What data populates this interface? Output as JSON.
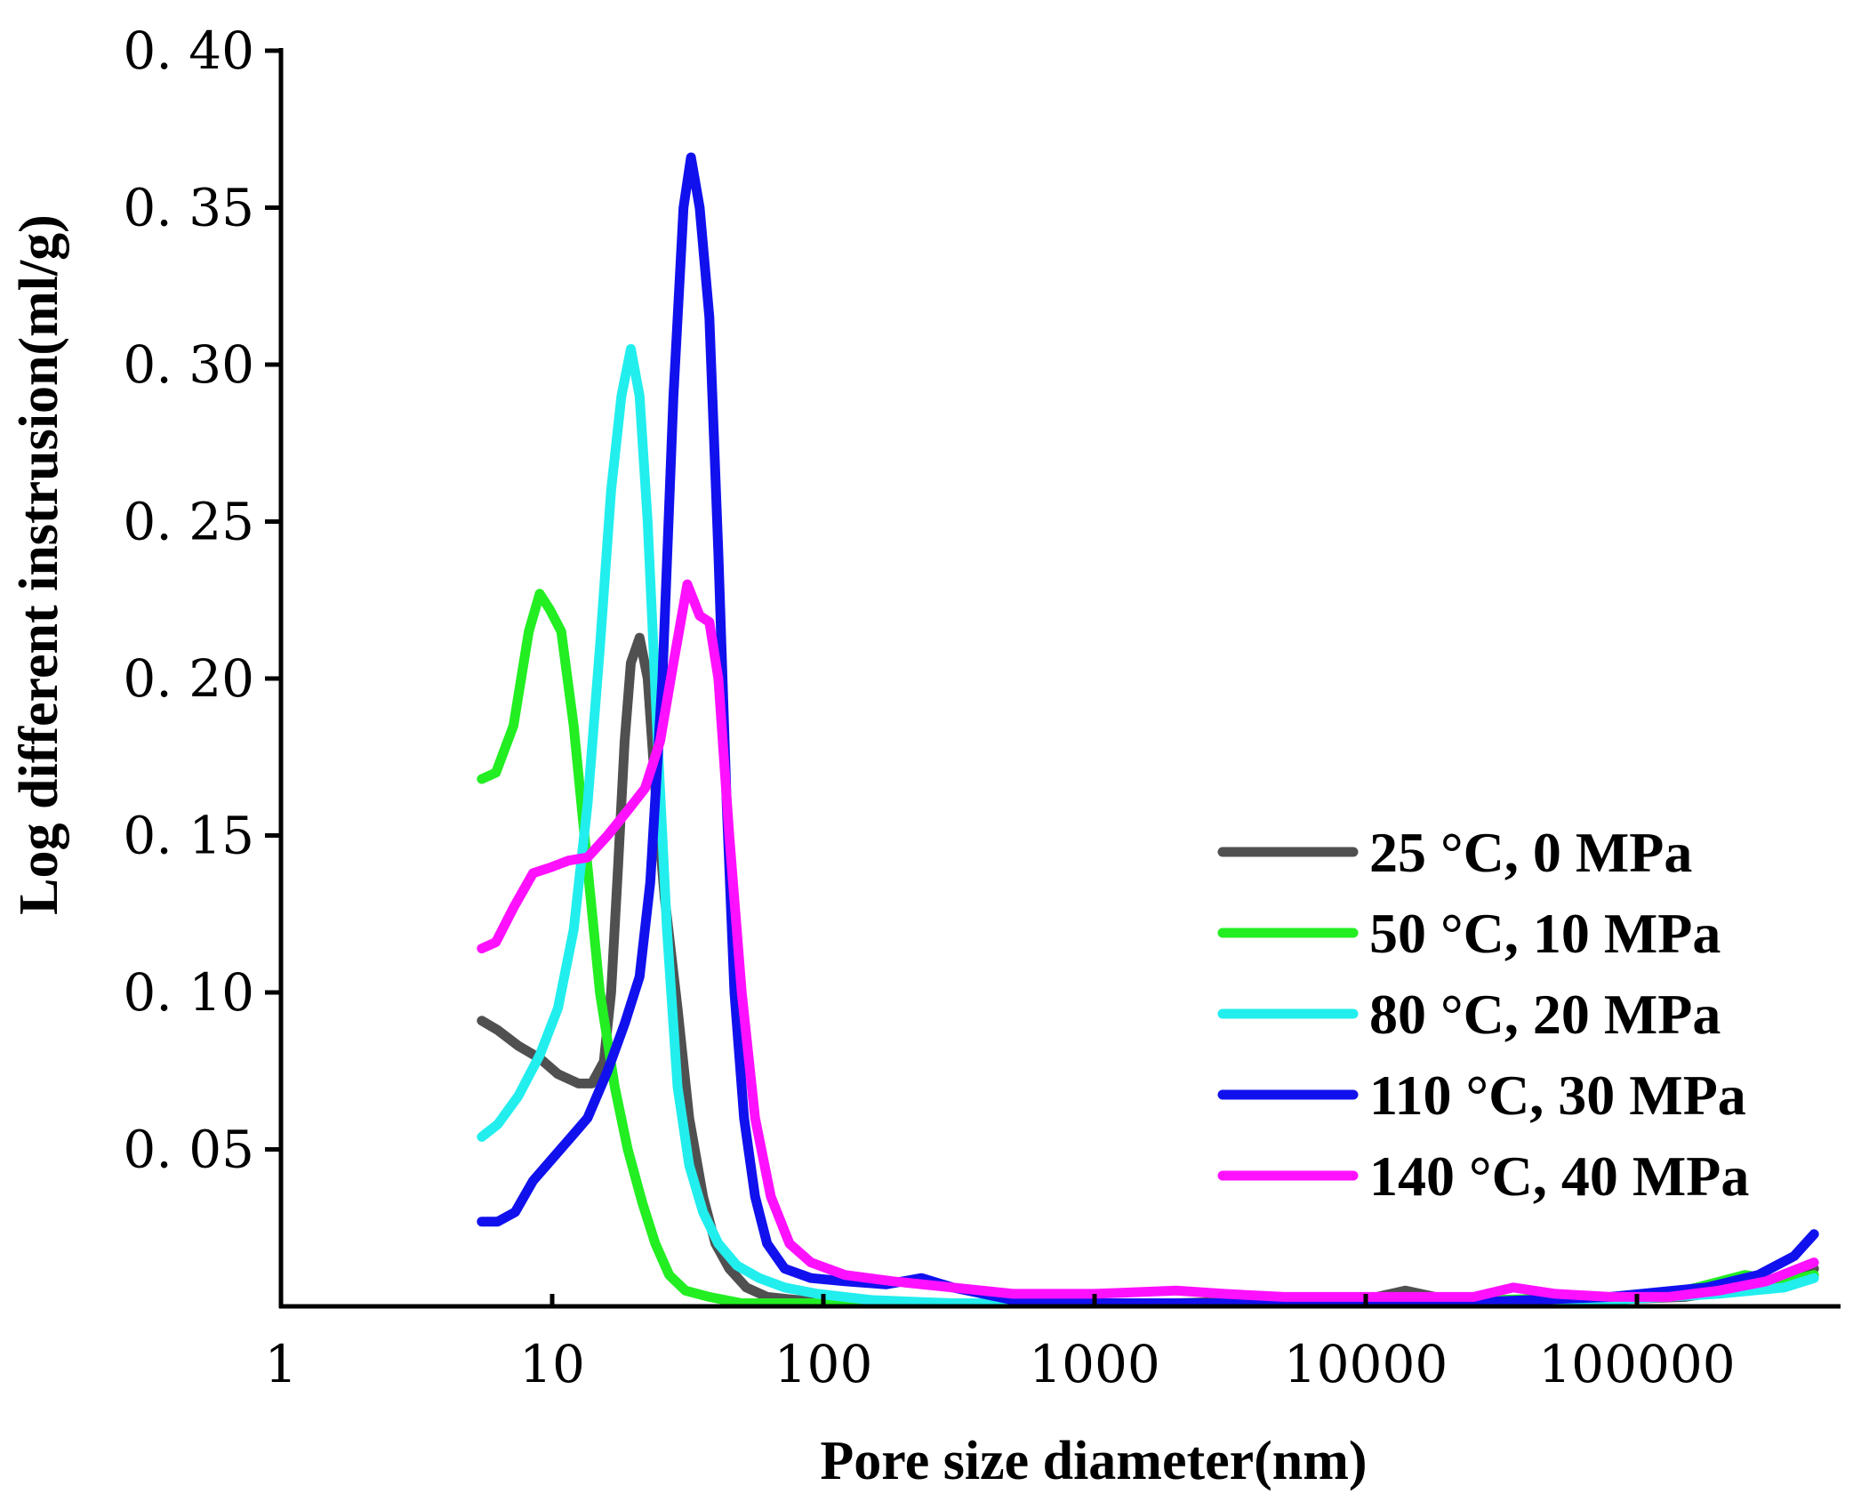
{
  "chart_data": {
    "type": "line",
    "xscale": "log",
    "xlabel": "Pore size diameter(nm)",
    "ylabel": "Log different instrusion(ml/g)",
    "xlim": [
      1,
      600000
    ],
    "ylim": [
      0,
      0.4
    ],
    "xticks": [
      1,
      10,
      100,
      1000,
      10000,
      100000
    ],
    "xtick_labels": [
      "1",
      "10",
      "100",
      "1000",
      "10000",
      "100000"
    ],
    "yticks": [
      0.05,
      0.1,
      0.15,
      0.2,
      0.25,
      0.3,
      0.35,
      0.4
    ],
    "ytick_labels": [
      "0. 05",
      "0. 10",
      "0. 15",
      "0. 20",
      "0. 25",
      "0. 30",
      "0. 35",
      "0. 40"
    ],
    "legend_position": "center-right",
    "series": [
      {
        "name": "25 °C, 0 MPa",
        "color": "#505050",
        "points": [
          [
            5.5,
            0.091
          ],
          [
            6.3,
            0.088
          ],
          [
            7.5,
            0.083
          ],
          [
            9,
            0.079
          ],
          [
            10.5,
            0.074
          ],
          [
            12.5,
            0.071
          ],
          [
            14,
            0.071
          ],
          [
            15.5,
            0.078
          ],
          [
            16.5,
            0.1
          ],
          [
            17.5,
            0.14
          ],
          [
            18.5,
            0.18
          ],
          [
            19.5,
            0.205
          ],
          [
            21,
            0.213
          ],
          [
            22.5,
            0.2
          ],
          [
            24,
            0.165
          ],
          [
            26,
            0.13
          ],
          [
            29,
            0.095
          ],
          [
            32,
            0.06
          ],
          [
            36,
            0.035
          ],
          [
            40,
            0.02
          ],
          [
            45,
            0.012
          ],
          [
            52,
            0.006
          ],
          [
            62,
            0.003
          ],
          [
            80,
            0.002
          ],
          [
            130,
            0.001
          ],
          [
            500,
            0.001
          ],
          [
            2000,
            0.001
          ],
          [
            5000,
            0.002
          ],
          [
            8000,
            0.002
          ],
          [
            11000,
            0.003
          ],
          [
            14000,
            0.005
          ],
          [
            18000,
            0.003
          ],
          [
            25000,
            0.002
          ],
          [
            40000,
            0.002
          ],
          [
            70000,
            0.002
          ],
          [
            150000,
            0.003
          ],
          [
            300000,
            0.007
          ],
          [
            450000,
            0.012
          ]
        ]
      },
      {
        "name": "50 °C, 10 MPa",
        "color": "#22ee22",
        "points": [
          [
            5.5,
            0.168
          ],
          [
            6.2,
            0.17
          ],
          [
            7.2,
            0.185
          ],
          [
            8.2,
            0.215
          ],
          [
            9,
            0.227
          ],
          [
            9.8,
            0.222
          ],
          [
            10.8,
            0.215
          ],
          [
            12,
            0.185
          ],
          [
            13.5,
            0.14
          ],
          [
            15,
            0.1
          ],
          [
            17,
            0.07
          ],
          [
            19,
            0.05
          ],
          [
            21.5,
            0.033
          ],
          [
            24,
            0.02
          ],
          [
            27,
            0.01
          ],
          [
            31,
            0.005
          ],
          [
            38,
            0.003
          ],
          [
            50,
            0.001
          ],
          [
            80,
            0.001
          ],
          [
            200,
            0.001
          ],
          [
            1000,
            0.001
          ],
          [
            5000,
            0.001
          ],
          [
            10000,
            0.002
          ],
          [
            30000,
            0.002
          ],
          [
            80000,
            0.003
          ],
          [
            150000,
            0.005
          ],
          [
            250000,
            0.01
          ],
          [
            350000,
            0.008
          ],
          [
            450000,
            0.01
          ]
        ]
      },
      {
        "name": "80 °C, 20 MPa",
        "color": "#22eeee",
        "points": [
          [
            5.5,
            0.054
          ],
          [
            6.3,
            0.058
          ],
          [
            7.5,
            0.067
          ],
          [
            9,
            0.08
          ],
          [
            10.5,
            0.095
          ],
          [
            12,
            0.12
          ],
          [
            13.5,
            0.16
          ],
          [
            15,
            0.21
          ],
          [
            16.5,
            0.26
          ],
          [
            18,
            0.29
          ],
          [
            19.5,
            0.305
          ],
          [
            21,
            0.29
          ],
          [
            22.5,
            0.25
          ],
          [
            24.5,
            0.18
          ],
          [
            26.5,
            0.12
          ],
          [
            29,
            0.07
          ],
          [
            32,
            0.045
          ],
          [
            36,
            0.03
          ],
          [
            41,
            0.02
          ],
          [
            48,
            0.013
          ],
          [
            58,
            0.009
          ],
          [
            72,
            0.006
          ],
          [
            95,
            0.004
          ],
          [
            150,
            0.002
          ],
          [
            300,
            0.001
          ],
          [
            1000,
            0.001
          ],
          [
            5000,
            0.001
          ],
          [
            20000,
            0.001
          ],
          [
            80000,
            0.002
          ],
          [
            200000,
            0.004
          ],
          [
            350000,
            0.006
          ],
          [
            450000,
            0.009
          ]
        ]
      },
      {
        "name": "110 °C, 30 MPa",
        "color": "#1111ee",
        "points": [
          [
            5.5,
            0.027
          ],
          [
            6.3,
            0.027
          ],
          [
            7.3,
            0.03
          ],
          [
            8.5,
            0.04
          ],
          [
            10,
            0.047
          ],
          [
            11.5,
            0.053
          ],
          [
            13.5,
            0.06
          ],
          [
            16,
            0.075
          ],
          [
            18.5,
            0.09
          ],
          [
            21,
            0.105
          ],
          [
            23,
            0.135
          ],
          [
            25.5,
            0.2
          ],
          [
            28,
            0.29
          ],
          [
            30.5,
            0.35
          ],
          [
            32.5,
            0.366
          ],
          [
            35,
            0.35
          ],
          [
            38,
            0.315
          ],
          [
            41,
            0.24
          ],
          [
            44,
            0.16
          ],
          [
            47,
            0.1
          ],
          [
            51,
            0.06
          ],
          [
            56,
            0.035
          ],
          [
            62,
            0.02
          ],
          [
            72,
            0.012
          ],
          [
            90,
            0.009
          ],
          [
            120,
            0.008
          ],
          [
            170,
            0.007
          ],
          [
            230,
            0.009
          ],
          [
            300,
            0.006
          ],
          [
            500,
            0.002
          ],
          [
            1000,
            0.001
          ],
          [
            5000,
            0.001
          ],
          [
            20000,
            0.001
          ],
          [
            80000,
            0.003
          ],
          [
            180000,
            0.006
          ],
          [
            280000,
            0.01
          ],
          [
            380000,
            0.016
          ],
          [
            450000,
            0.023
          ]
        ]
      },
      {
        "name": "140 °C, 40 MPa",
        "color": "#ff11ff",
        "points": [
          [
            5.5,
            0.114
          ],
          [
            6.2,
            0.116
          ],
          [
            7.2,
            0.127
          ],
          [
            8.5,
            0.138
          ],
          [
            10,
            0.14
          ],
          [
            11.5,
            0.142
          ],
          [
            13.5,
            0.143
          ],
          [
            16,
            0.15
          ],
          [
            19,
            0.158
          ],
          [
            22,
            0.165
          ],
          [
            25,
            0.18
          ],
          [
            28,
            0.205
          ],
          [
            31.5,
            0.23
          ],
          [
            35,
            0.22
          ],
          [
            38,
            0.218
          ],
          [
            41,
            0.2
          ],
          [
            45,
            0.15
          ],
          [
            50,
            0.1
          ],
          [
            56,
            0.06
          ],
          [
            64,
            0.035
          ],
          [
            75,
            0.02
          ],
          [
            90,
            0.014
          ],
          [
            120,
            0.01
          ],
          [
            180,
            0.008
          ],
          [
            300,
            0.006
          ],
          [
            500,
            0.004
          ],
          [
            1000,
            0.004
          ],
          [
            2000,
            0.005
          ],
          [
            3000,
            0.004
          ],
          [
            5000,
            0.003
          ],
          [
            12000,
            0.003
          ],
          [
            25000,
            0.003
          ],
          [
            35000,
            0.006
          ],
          [
            50000,
            0.004
          ],
          [
            80000,
            0.003
          ],
          [
            130000,
            0.003
          ],
          [
            200000,
            0.005
          ],
          [
            300000,
            0.008
          ],
          [
            450000,
            0.014
          ]
        ]
      }
    ]
  }
}
